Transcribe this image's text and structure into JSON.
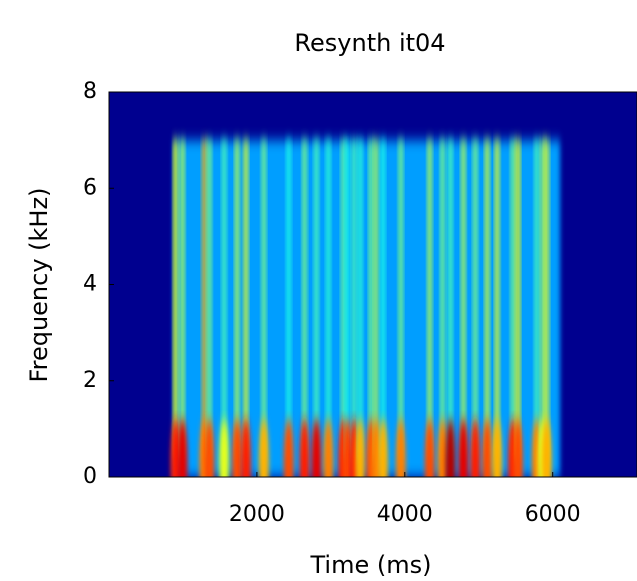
{
  "chart_data": {
    "type": "heatmap",
    "title": "Resynth it04",
    "x_label": "Time (ms)",
    "y_label": "Frequency (kHz)",
    "xlim": [
      0,
      7140
    ],
    "ylim": [
      0,
      8
    ],
    "xticks": [
      2000,
      4000,
      6000
    ],
    "yticks": [
      0,
      2,
      4,
      6,
      8
    ],
    "background_color": "#00008f",
    "signal_xlim": [
      870,
      6100
    ],
    "signal_ylim": [
      0,
      7
    ],
    "signal_level": 0.28,
    "x": [
      900,
      993,
      1289,
      1356,
      1557,
      1732,
      1852,
      2094,
      2430,
      2644,
      2805,
      2966,
      3168,
      3221,
      3315,
      3396,
      3544,
      3611,
      3705,
      3946,
      4336,
      4510,
      4617,
      4792,
      4953,
      5114,
      5248,
      5463,
      5530,
      5785,
      5866,
      5919
    ],
    "values": [
      0.62,
      0.55,
      0.7,
      0.5,
      0.45,
      0.55,
      0.6,
      0.5,
      0.4,
      0.5,
      0.45,
      0.42,
      0.48,
      0.4,
      0.45,
      0.42,
      0.5,
      0.55,
      0.4,
      0.5,
      0.55,
      0.5,
      0.45,
      0.55,
      0.5,
      0.58,
      0.6,
      0.5,
      0.62,
      0.45,
      0.55,
      0.6
    ],
    "low_values": [
      0.85,
      0.9,
      0.75,
      0.8,
      0.6,
      0.8,
      0.85,
      0.7,
      0.8,
      0.85,
      0.9,
      0.75,
      0.85,
      0.8,
      0.85,
      0.7,
      0.8,
      0.75,
      0.7,
      0.75,
      0.8,
      0.75,
      0.95,
      0.9,
      0.85,
      0.8,
      0.7,
      0.85,
      0.8,
      0.75,
      0.6,
      0.7
    ]
  }
}
